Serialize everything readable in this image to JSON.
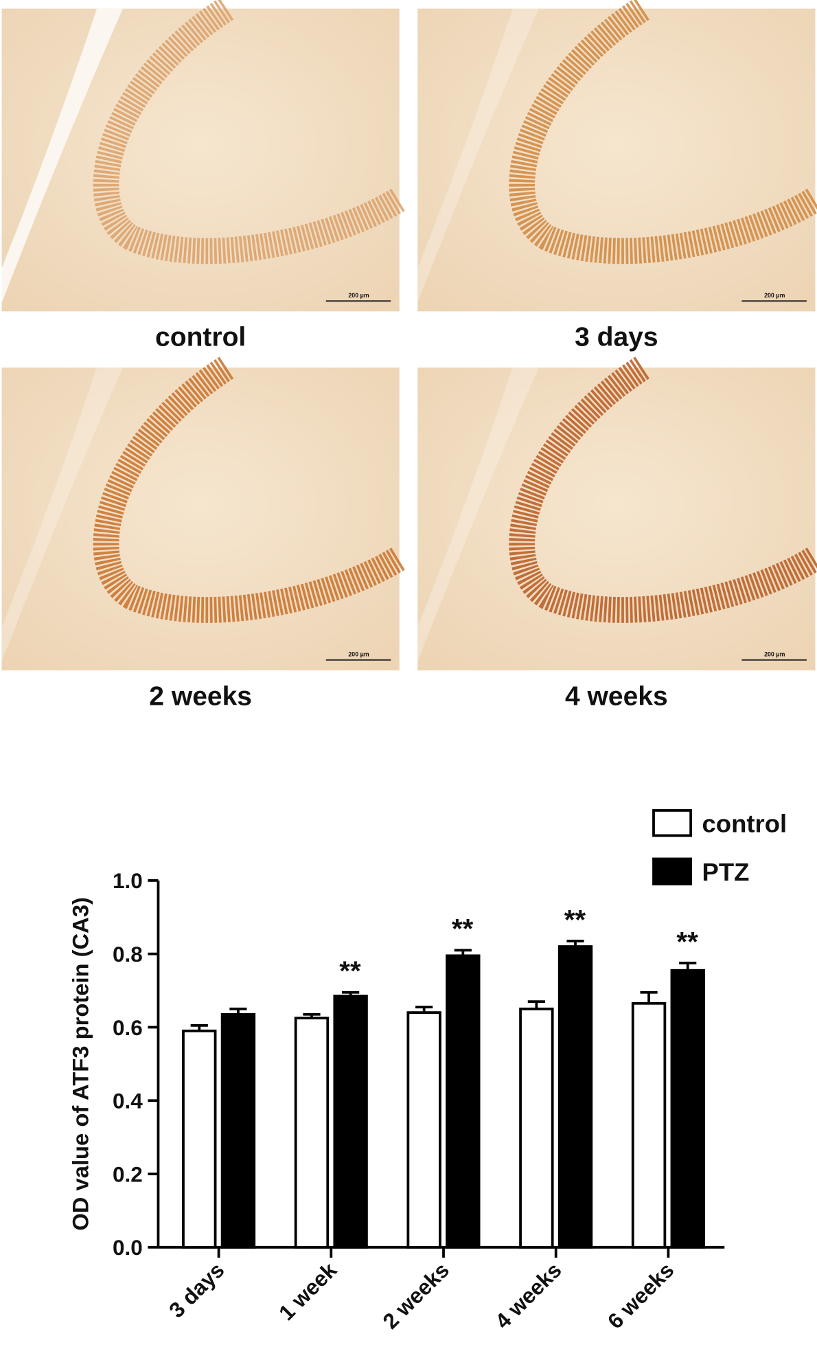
{
  "panels": [
    {
      "label": "control",
      "scale_bar": "200 μm"
    },
    {
      "label": "3 days",
      "scale_bar": "200 μm"
    },
    {
      "label": "2 weeks",
      "scale_bar": "200 μm"
    },
    {
      "label": "4 weeks",
      "scale_bar": "200 μm"
    }
  ],
  "chart_data": {
    "type": "bar",
    "y_label": "OD value of ATF3 protein (CA3)",
    "categories": [
      "3 days",
      "1 week",
      "2 weeks",
      "4 weeks",
      "6 weeks"
    ],
    "series": [
      {
        "name": "control",
        "color": "#ffffff",
        "values": [
          0.59,
          0.625,
          0.64,
          0.65,
          0.665
        ],
        "errors": [
          0.015,
          0.01,
          0.015,
          0.02,
          0.03
        ]
      },
      {
        "name": "PTZ",
        "color": "#000000",
        "values": [
          0.635,
          0.685,
          0.795,
          0.82,
          0.755
        ],
        "errors": [
          0.015,
          0.01,
          0.015,
          0.015,
          0.02
        ]
      }
    ],
    "significance": [
      null,
      "**",
      "**",
      "**",
      "**"
    ],
    "ylim": [
      0,
      1
    ],
    "yticks": [
      {
        "value": 0,
        "label": "0.0"
      },
      0.2,
      0.4,
      0.6,
      0.8,
      {
        "value": 1,
        "label": "1.0"
      }
    ],
    "legend": "top-right"
  }
}
